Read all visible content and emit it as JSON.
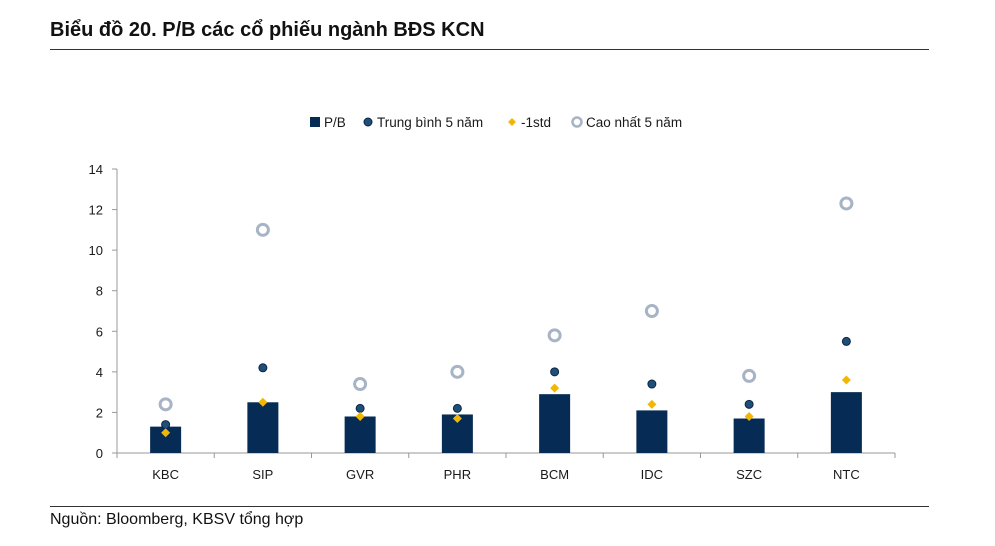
{
  "header": {
    "title": "Biểu đồ 20. P/B các cổ phiếu ngành BĐS KCN"
  },
  "footer": {
    "source": "Nguồn: Bloomberg, KBSV tổng hợp"
  },
  "colors": {
    "bar": "#062b54",
    "avg": "#1f4e79",
    "std": "#f2b705",
    "max": "#a6b4c6",
    "axis": "#999999"
  },
  "chart_data": {
    "type": "bar",
    "title": "",
    "xlabel": "",
    "ylabel": "",
    "ylim": [
      0,
      14
    ],
    "yticks": [
      0,
      2,
      4,
      6,
      8,
      10,
      12,
      14
    ],
    "ytick_labels": [
      "0",
      "2",
      "4",
      "6",
      "8",
      "10",
      "12",
      "14"
    ],
    "categories": [
      "KBC",
      "SIP",
      "GVR",
      "PHR",
      "BCM",
      "IDC",
      "SZC",
      "NTC"
    ],
    "legend_position": "top-center",
    "series": [
      {
        "name": "P/B",
        "kind": "bar",
        "values": [
          1.3,
          2.5,
          1.8,
          1.9,
          2.9,
          2.1,
          1.7,
          3.0
        ]
      },
      {
        "name": "Trung bình 5 năm",
        "kind": "dot",
        "values": [
          1.4,
          4.2,
          2.2,
          2.2,
          4.0,
          3.4,
          2.4,
          5.5
        ]
      },
      {
        "name": "-1std",
        "kind": "diamond",
        "values": [
          1.0,
          2.5,
          1.8,
          1.7,
          3.2,
          2.4,
          1.8,
          3.6
        ]
      },
      {
        "name": "Cao nhất 5 năm",
        "kind": "ring",
        "values": [
          2.4,
          11.0,
          3.4,
          4.0,
          5.8,
          7.0,
          3.8,
          12.3
        ]
      }
    ]
  }
}
